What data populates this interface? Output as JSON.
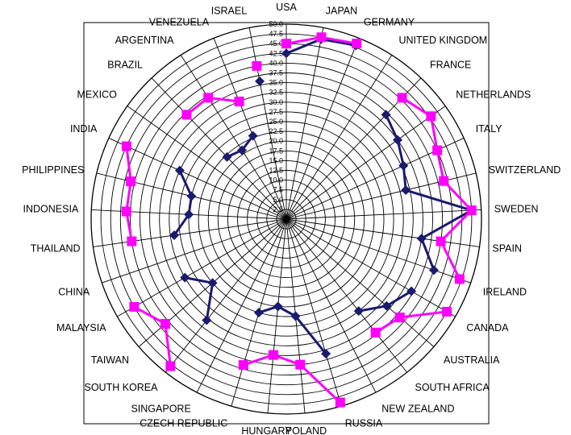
{
  "chart_data": {
    "type": "radar",
    "title": "",
    "r_axis": {
      "min": 0,
      "max": 50,
      "step": 2.5,
      "tick_labels": [
        "2.5",
        "5.0",
        "7.5",
        "10.0",
        "12.5",
        "15.0",
        "17.5",
        "20.0",
        "22.5",
        "25.0",
        "27.5",
        "30.0",
        "32.5",
        "35.0",
        "37.5",
        "40.0",
        "42.5",
        "45.0",
        "47.5",
        "50.0"
      ]
    },
    "categories": [
      "USA",
      "JAPAN",
      "GERMANY",
      "UNITED KINGDOM",
      "FRANCE",
      "NETHERLANDS",
      "ITALY",
      "SWITZERLAND",
      "SWEDEN",
      "SPAIN",
      "IRELAND",
      "CANADA",
      "AUSTRALIA",
      "SOUTH AFRICA",
      "NEW ZEALAND",
      "RUSSIA",
      "POLAND",
      "HUNGARY",
      "CZECH REPUBLIC",
      "SINGAPORE",
      "SOUTH KOREA",
      "TAIWAN",
      "MALAYSIA",
      "CHINA",
      "THAILAND",
      "INDONESIA",
      "PHILIPPINES",
      "INDIA",
      "MEXICO",
      "BRAZIL",
      "ARGENTINA",
      "VENEZUELA",
      "ISRAEL"
    ],
    "series": [
      {
        "color": "#1a1a6e",
        "marker": "diamond",
        "groups": [
          {
            "indices": [
              0,
              1,
              2
            ],
            "values": [
              42.5,
              47.0,
              48.0
            ]
          },
          {
            "indices": [
              4,
              5,
              6,
              7,
              8,
              9,
              10
            ],
            "values": [
              37.0,
              35.0,
              33.0,
              31.5,
              47.5,
              35.0,
              40.0
            ]
          },
          {
            "indices": [
              11,
              12,
              13
            ],
            "values": [
              37.0,
              34.0,
              30.0
            ]
          },
          {
            "indices": [
              15,
              16,
              17,
              18
            ],
            "values": [
              36.0,
              25.0,
              22.5,
              25.0
            ]
          },
          {
            "indices": [
              20,
              21,
              22
            ],
            "values": [
              33.0,
              25.0,
              30.0
            ]
          },
          {
            "indices": [
              24,
              25,
              26,
              27
            ],
            "values": [
              29.0,
              25.0,
              25.0,
              30.0
            ]
          },
          {
            "indices": [
              29,
              30,
              31
            ],
            "values": [
              22.0,
              21.0,
              23.0
            ]
          },
          {
            "indices": [
              32
            ],
            "values": [
              36.0
            ]
          }
        ]
      },
      {
        "color": "#ff00ff",
        "marker": "square",
        "groups": [
          {
            "indices": [
              0,
              1,
              2
            ],
            "values": [
              45.0,
              47.5,
              48.5
            ]
          },
          {
            "indices": [
              4,
              5,
              6,
              7,
              8,
              9,
              10
            ],
            "values": [
              43.0,
              45.5,
              42.5,
              41.5,
              47.5,
              40.0,
              47.0
            ]
          },
          {
            "indices": [
              11,
              12,
              13
            ],
            "values": [
              47.5,
              38.5,
              37.0
            ]
          },
          {
            "indices": [
              15,
              16,
              17,
              18
            ],
            "values": [
              49.0,
              37.5,
              35.0,
              39.0
            ]
          },
          {
            "indices": [
              20,
              21,
              22
            ],
            "values": [
              48.0,
              41.0,
              45.0
            ]
          },
          {
            "indices": [
              24,
              25,
              26,
              27
            ],
            "values": [
              40.0,
              41.0,
              41.0,
              45.0
            ]
          },
          {
            "indices": [
              29,
              30,
              31
            ],
            "values": [
              37.0,
              37.0,
              32.5
            ]
          },
          {
            "indices": [
              32
            ],
            "values": [
              40.0
            ]
          }
        ]
      }
    ],
    "grid": true,
    "legend": "none"
  }
}
